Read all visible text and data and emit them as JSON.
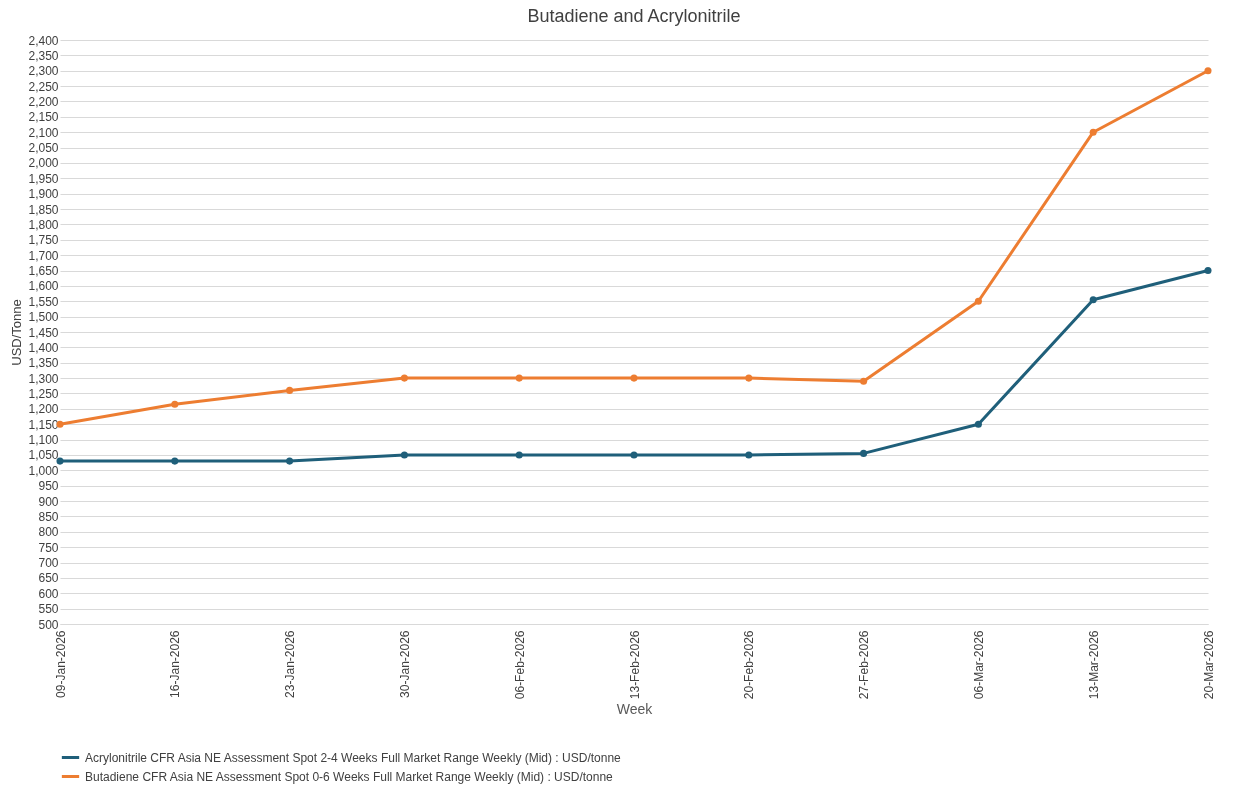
{
  "chart_data": {
    "type": "line",
    "title": "Butadiene and Acrylonitrile",
    "xlabel": "Week",
    "ylabel": "USD/Tonne",
    "categories": [
      "09-Jan-2026",
      "16-Jan-2026",
      "23-Jan-2026",
      "30-Jan-2026",
      "06-Feb-2026",
      "13-Feb-2026",
      "20-Feb-2026",
      "27-Feb-2026",
      "06-Mar-2026",
      "13-Mar-2026",
      "20-Mar-2026"
    ],
    "series": [
      {
        "name": "Acrylonitrile CFR Asia NE Assessment Spot 2-4 Weeks Full Market Range Weekly (Mid) : USD/tonne",
        "color": "#1f5f7a",
        "values": [
          1030,
          1030,
          1030,
          1050,
          1050,
          1050,
          1050,
          1055,
          1150,
          1555,
          1650
        ]
      },
      {
        "name": "Butadiene CFR Asia NE Assessment Spot 0-6 Weeks Full Market Range Weekly (Mid) : USD/tonne",
        "color": "#ed7d31",
        "values": [
          1150,
          1215,
          1260,
          1300,
          1300,
          1300,
          1300,
          1290,
          1550,
          2100,
          2300
        ]
      }
    ],
    "ylim": [
      500,
      2400
    ],
    "yticks": [
      500,
      550,
      600,
      650,
      700,
      750,
      800,
      850,
      900,
      950,
      {
        "value": 1000,
        "label": "1,000"
      },
      {
        "value": 1050,
        "label": "1,050"
      },
      {
        "value": 1100,
        "label": "1,100"
      },
      {
        "value": 1150,
        "label": "1,150"
      },
      {
        "value": 1200,
        "label": "1,200"
      },
      {
        "value": 1250,
        "label": "1,250"
      },
      {
        "value": 1300,
        "label": "1,300"
      },
      {
        "value": 1350,
        "label": "1,350"
      },
      {
        "value": 1400,
        "label": "1,400"
      },
      {
        "value": 1450,
        "label": "1,450"
      },
      {
        "value": 1500,
        "label": "1,500"
      },
      {
        "value": 1550,
        "label": "1,550"
      },
      {
        "value": 1600,
        "label": "1,600"
      },
      {
        "value": 1650,
        "label": "1,650"
      },
      {
        "value": 1700,
        "label": "1,700"
      },
      {
        "value": 1750,
        "label": "1,750"
      },
      {
        "value": 1800,
        "label": "1,800"
      },
      {
        "value": 1850,
        "label": "1,850"
      },
      {
        "value": 1900,
        "label": "1,900"
      },
      {
        "value": 1950,
        "label": "1,950"
      },
      {
        "value": 2000,
        "label": "2,000"
      },
      {
        "value": 2050,
        "label": "2,050"
      },
      {
        "value": 2100,
        "label": "2,100"
      },
      {
        "value": 2150,
        "label": "2,150"
      },
      {
        "value": 2200,
        "label": "2,200"
      },
      {
        "value": 2250,
        "label": "2,250"
      },
      {
        "value": 2300,
        "label": "2,300"
      },
      {
        "value": 2350,
        "label": "2,350"
      },
      {
        "value": 2400,
        "label": "2,400"
      }
    ],
    "grid": "y",
    "legend": "bottom",
    "marker": "circle",
    "line_style": "solid"
  }
}
